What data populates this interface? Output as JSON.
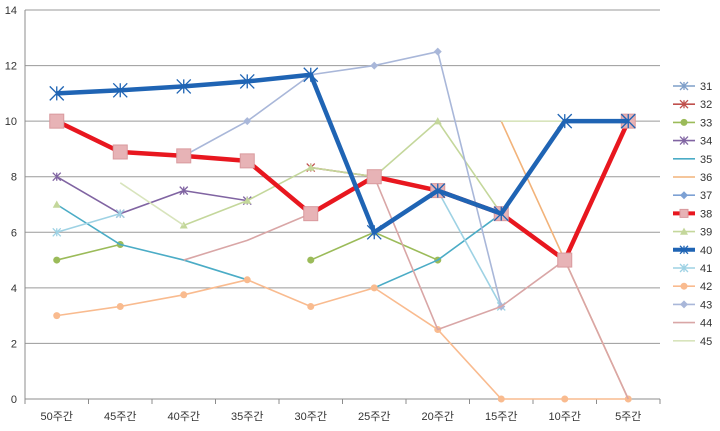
{
  "chart_data": {
    "type": "line",
    "categories": [
      "50주간",
      "45주간",
      "40주간",
      "35주간",
      "30주간",
      "25주간",
      "20주간",
      "15주간",
      "10주간",
      "5주간"
    ],
    "ylim": [
      0,
      14
    ],
    "yticks": [
      "0",
      "2",
      "4",
      "6",
      "8",
      "10",
      "12",
      "14"
    ],
    "grid": "horizontal",
    "legend_position": "right",
    "series": [
      {
        "name": "31",
        "color": "#7f9fc9",
        "marker": "x",
        "values": [
          null,
          null,
          null,
          null,
          null,
          null,
          null,
          null,
          null,
          null
        ]
      },
      {
        "name": "32",
        "color": "#c0504d",
        "marker": "x",
        "values": [
          null,
          null,
          null,
          null,
          8.33,
          8,
          7.5,
          6.67,
          5,
          null
        ]
      },
      {
        "name": "33",
        "color": "#9bbb59",
        "marker": "circle",
        "values": [
          5,
          5.56,
          null,
          null,
          5,
          6,
          5,
          null,
          null,
          null
        ]
      },
      {
        "name": "34",
        "color": "#8064a2",
        "marker": "x",
        "values": [
          8,
          6.67,
          7.5,
          7.14,
          null,
          null,
          null,
          null,
          null,
          null
        ]
      },
      {
        "name": "35",
        "color": "#4bacc6",
        "marker": "line",
        "values": [
          7,
          5.56,
          5,
          4.29,
          null,
          4,
          5,
          6.67,
          null,
          null
        ]
      },
      {
        "name": "36",
        "color": "#f2b37a",
        "marker": "line",
        "values": [
          null,
          null,
          null,
          null,
          null,
          null,
          null,
          10,
          5,
          0
        ]
      },
      {
        "name": "37",
        "color": "#7da1d4",
        "marker": "diamond",
        "values": [
          null,
          null,
          null,
          null,
          null,
          6,
          7.5,
          null,
          null,
          null
        ]
      },
      {
        "name": "38",
        "color": "#e8171f",
        "marker": "square",
        "values": [
          10,
          8.89,
          8.75,
          8.57,
          6.67,
          8,
          7.5,
          6.67,
          5,
          10
        ]
      },
      {
        "name": "39",
        "color": "#c4d79b",
        "marker": "triangle",
        "values": [
          7,
          null,
          6.25,
          7.14,
          8.33,
          8,
          10,
          6.67,
          null,
          null
        ]
      },
      {
        "name": "40",
        "color": "#1f64b4",
        "marker": "x",
        "values": [
          11,
          11.11,
          11.25,
          11.43,
          11.67,
          6,
          7.5,
          6.67,
          10,
          10
        ]
      },
      {
        "name": "41",
        "color": "#9ed2e4",
        "marker": "x",
        "values": [
          6,
          6.67,
          null,
          null,
          null,
          null,
          7.5,
          3.33,
          null,
          null
        ]
      },
      {
        "name": "42",
        "color": "#f9bb8f",
        "marker": "circle",
        "values": [
          3,
          3.33,
          3.75,
          4.29,
          3.33,
          4,
          2.5,
          0,
          0,
          0
        ]
      },
      {
        "name": "43",
        "color": "#a9b7d9",
        "marker": "diamond",
        "values": [
          null,
          null,
          8.75,
          10,
          11.67,
          12,
          12.5,
          3.33,
          null,
          null
        ]
      },
      {
        "name": "44",
        "color": "#d9a6a6",
        "marker": "line",
        "values": [
          7,
          null,
          5,
          5.71,
          6.67,
          8,
          2.5,
          3.33,
          5,
          0
        ]
      },
      {
        "name": "45",
        "color": "#d8e4bc",
        "marker": "line",
        "values": [
          null,
          7.78,
          6.25,
          null,
          null,
          null,
          null,
          10,
          10,
          10
        ]
      }
    ]
  }
}
